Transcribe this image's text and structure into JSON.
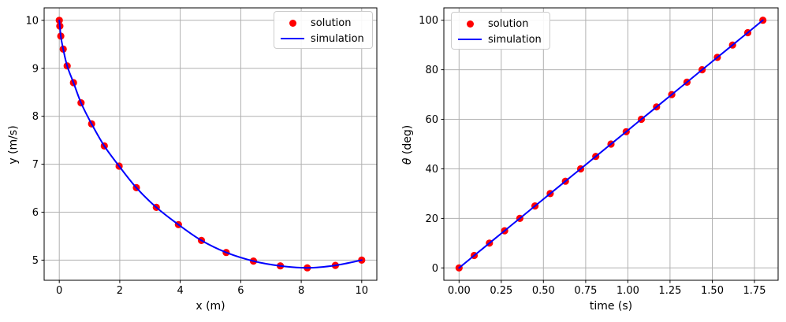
{
  "figure": {
    "background": "#ffffff"
  },
  "colors": {
    "solution_marker": "#ff0000",
    "simulation_line": "#0000ff",
    "grid": "#b0b0b0",
    "spine": "#000000",
    "tick_text": "#000000",
    "legend_edge": "#cccccc"
  },
  "chart_data": [
    {
      "type": "scatter",
      "title": "",
      "xlabel": "x (m)",
      "ylabel": "y (m/s)",
      "xlim": [
        -0.5,
        10.5
      ],
      "ylim": [
        4.58,
        10.26
      ],
      "xticks": [
        0,
        2,
        4,
        6,
        8,
        10
      ],
      "xtick_labels": [
        "0",
        "2",
        "4",
        "6",
        "8",
        "10"
      ],
      "yticks": [
        5,
        6,
        7,
        8,
        9,
        10
      ],
      "ytick_labels": [
        "5",
        "6",
        "7",
        "8",
        "9",
        "10"
      ],
      "grid": true,
      "legend_position": "upper right",
      "series": [
        {
          "name": "solution",
          "type": "scatter",
          "color": "#ff0000",
          "x": [
            0.0,
            0.02,
            0.05,
            0.13,
            0.26,
            0.47,
            0.72,
            1.07,
            1.49,
            1.98,
            2.55,
            3.21,
            3.94,
            4.7,
            5.52,
            6.42,
            7.31,
            8.2,
            9.13,
            10.0
          ],
          "y": [
            10.0,
            9.88,
            9.67,
            9.4,
            9.05,
            8.7,
            8.28,
            7.84,
            7.38,
            6.96,
            6.51,
            6.1,
            5.74,
            5.41,
            5.16,
            4.98,
            4.88,
            4.84,
            4.89,
            5.0
          ]
        },
        {
          "name": "simulation",
          "type": "line",
          "color": "#0000ff",
          "x": [
            0.0,
            0.02,
            0.05,
            0.13,
            0.26,
            0.47,
            0.72,
            1.07,
            1.49,
            1.98,
            2.55,
            3.21,
            3.94,
            4.7,
            5.52,
            6.42,
            7.31,
            8.2,
            9.13,
            10.0
          ],
          "y": [
            10.0,
            9.88,
            9.67,
            9.4,
            9.05,
            8.7,
            8.28,
            7.84,
            7.38,
            6.96,
            6.51,
            6.1,
            5.74,
            5.41,
            5.16,
            4.98,
            4.88,
            4.84,
            4.89,
            5.0
          ]
        }
      ]
    },
    {
      "type": "scatter",
      "title": "",
      "xlabel": "time (s)",
      "ylabel": "θ (deg)",
      "ylabel_symbol": "θ",
      "ylabel_unit": " (deg)",
      "xlim": [
        -0.09,
        1.89
      ],
      "ylim": [
        -5,
        105
      ],
      "xticks": [
        0.0,
        0.25,
        0.5,
        0.75,
        1.0,
        1.25,
        1.5,
        1.75
      ],
      "xtick_labels": [
        "0.00",
        "0.25",
        "0.50",
        "0.75",
        "1.00",
        "1.25",
        "1.50",
        "1.75"
      ],
      "yticks": [
        0,
        20,
        40,
        60,
        80,
        100
      ],
      "ytick_labels": [
        "0",
        "20",
        "40",
        "60",
        "80",
        "100"
      ],
      "grid": true,
      "legend_position": "upper left",
      "series": [
        {
          "name": "solution",
          "type": "scatter",
          "color": "#ff0000",
          "x": [
            0.0,
            0.09,
            0.18,
            0.27,
            0.36,
            0.45,
            0.54,
            0.63,
            0.72,
            0.81,
            0.9,
            0.99,
            1.08,
            1.17,
            1.26,
            1.35,
            1.44,
            1.53,
            1.62,
            1.71,
            1.8
          ],
          "y": [
            0,
            5,
            10,
            15,
            20,
            25,
            30,
            35,
            40,
            45,
            50,
            55,
            60,
            65,
            70,
            75,
            80,
            85,
            90,
            95,
            100
          ]
        },
        {
          "name": "simulation",
          "type": "line",
          "color": "#0000ff",
          "x": [
            0.0,
            0.09,
            0.18,
            0.27,
            0.36,
            0.45,
            0.54,
            0.63,
            0.72,
            0.81,
            0.9,
            0.99,
            1.08,
            1.17,
            1.26,
            1.35,
            1.44,
            1.53,
            1.62,
            1.71,
            1.8
          ],
          "y": [
            0,
            5,
            10,
            15,
            20,
            25,
            30,
            35,
            40,
            45,
            50,
            55,
            60,
            65,
            70,
            75,
            80,
            85,
            90,
            95,
            100
          ]
        }
      ]
    }
  ]
}
